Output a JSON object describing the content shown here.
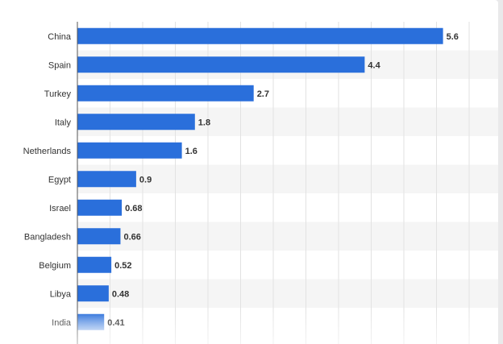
{
  "chart_data": {
    "type": "bar",
    "orientation": "horizontal",
    "categories": [
      "China",
      "Spain",
      "Turkey",
      "Italy",
      "Netherlands",
      "Egypt",
      "Israel",
      "Bangladesh",
      "Belgium",
      "Libya",
      "India"
    ],
    "values": [
      5.6,
      4.4,
      2.7,
      1.8,
      1.6,
      0.9,
      0.68,
      0.66,
      0.52,
      0.48,
      0.41
    ],
    "value_labels": [
      "5.6",
      "4.4",
      "2.7",
      "1.8",
      "1.6",
      "0.9",
      "0.68",
      "0.66",
      "0.52",
      "0.48",
      "0.41"
    ],
    "title": "",
    "xlabel": "",
    "ylabel": "",
    "xlim": [
      0,
      6
    ],
    "grid": true,
    "legend": "none"
  },
  "colors": {
    "bar": "#2a6fdb",
    "bar_fade": "#9fc0ef",
    "stripe": "#f5f5f5",
    "gridline": "#e2e2e2",
    "axis": "#555555"
  }
}
